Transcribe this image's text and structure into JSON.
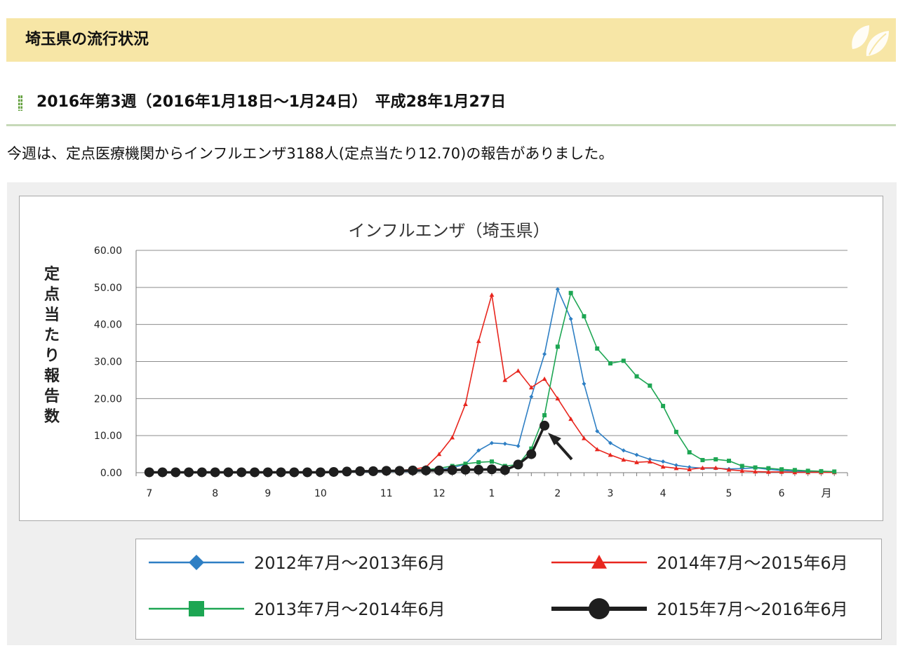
{
  "header": {
    "title": "埼玉県の流行状況",
    "icon": "leaf-icon"
  },
  "week_heading": "2016年第3週（2016年1月18日～1月24日）　平成28年1月27日",
  "report_text": "今週は、定点医療機関からインフルエンザ3188人(定点当たり12.70)の報告がありました。",
  "chart_data": {
    "type": "line",
    "title": "インフルエンザ（埼玉県）",
    "ylabel": "定点当たり報告数",
    "xlabel": "月",
    "ylim": [
      0,
      60
    ],
    "yticks": [
      "0.00",
      "10.00",
      "20.00",
      "30.00",
      "40.00",
      "50.00",
      "60.00"
    ],
    "x_weeks": 53,
    "month_labels": [
      {
        "label": "7",
        "week": 1
      },
      {
        "label": "8",
        "week": 6
      },
      {
        "label": "9",
        "week": 10
      },
      {
        "label": "10",
        "week": 14
      },
      {
        "label": "11",
        "week": 19
      },
      {
        "label": "12",
        "week": 23
      },
      {
        "label": "1",
        "week": 27
      },
      {
        "label": "2",
        "week": 32
      },
      {
        "label": "3",
        "week": 36
      },
      {
        "label": "4",
        "week": 40
      },
      {
        "label": "5",
        "week": 45
      },
      {
        "label": "6",
        "week": 49
      }
    ],
    "annotation": "arrow pointing to latest value",
    "grid": true,
    "legend_position": "bottom",
    "series": [
      {
        "name": "2012年7月～2013年6月",
        "color": "#2e7fc4",
        "marker": "diamond",
        "values": [
          0.1,
          0.1,
          0.1,
          0.1,
          0.1,
          0.1,
          0.1,
          0.1,
          0.1,
          0.1,
          0.1,
          0.1,
          0.1,
          0.1,
          0.1,
          0.2,
          0.2,
          0.2,
          0.3,
          0.3,
          0.3,
          0.5,
          0.8,
          1.3,
          2.3,
          6.0,
          8.0,
          7.8,
          7.2,
          20.5,
          32.0,
          49.5,
          41.5,
          24.0,
          11.2,
          8.0,
          6.0,
          4.8,
          3.6,
          3.0,
          2.0,
          1.5,
          1.2,
          1.2,
          1.0,
          1.1,
          1.3,
          0.9,
          0.6,
          0.4,
          0.3,
          0.2,
          0.1
        ]
      },
      {
        "name": "2014年7月～2015年6月",
        "color": "#e8261e",
        "marker": "triangle",
        "values": [
          0.1,
          0.1,
          0.1,
          0.1,
          0.1,
          0.1,
          0.1,
          0.1,
          0.1,
          0.1,
          0.1,
          0.1,
          0.1,
          0.1,
          0.2,
          0.2,
          0.3,
          0.4,
          0.5,
          0.6,
          0.9,
          1.5,
          5.0,
          9.5,
          18.5,
          35.5,
          48.0,
          25.0,
          27.5,
          23.0,
          25.3,
          20.0,
          14.5,
          9.3,
          6.3,
          4.8,
          3.5,
          2.8,
          3.0,
          1.6,
          1.2,
          0.9,
          1.3,
          1.3,
          0.8,
          0.5,
          0.3,
          0.2,
          0.2,
          0.1,
          0.1,
          0.1,
          0.1
        ]
      },
      {
        "name": "2013年7月～2014年6月",
        "color": "#1da653",
        "marker": "square",
        "values": [
          0.1,
          0.1,
          0.1,
          0.1,
          0.1,
          0.1,
          0.1,
          0.1,
          0.1,
          0.1,
          0.1,
          0.1,
          0.2,
          0.2,
          0.3,
          0.3,
          0.4,
          0.4,
          0.5,
          0.6,
          0.6,
          0.8,
          1.2,
          1.8,
          2.4,
          2.8,
          3.0,
          1.8,
          2.2,
          6.5,
          15.5,
          34.0,
          48.5,
          42.2,
          33.5,
          29.5,
          30.2,
          26.0,
          23.5,
          18.0,
          11.0,
          5.5,
          3.4,
          3.6,
          3.2,
          1.8,
          1.4,
          1.2,
          0.9,
          0.7,
          0.5,
          0.4,
          0.3
        ]
      },
      {
        "name": "2015年7月～2016年6月",
        "color": "#1e1e1e",
        "marker": "circle",
        "values": [
          0.1,
          0.1,
          0.1,
          0.1,
          0.1,
          0.1,
          0.1,
          0.1,
          0.1,
          0.1,
          0.1,
          0.1,
          0.1,
          0.1,
          0.2,
          0.3,
          0.4,
          0.4,
          0.5,
          0.5,
          0.6,
          0.6,
          0.6,
          0.7,
          0.8,
          0.8,
          0.9,
          0.7,
          2.2,
          5.0,
          12.7
        ]
      }
    ]
  }
}
